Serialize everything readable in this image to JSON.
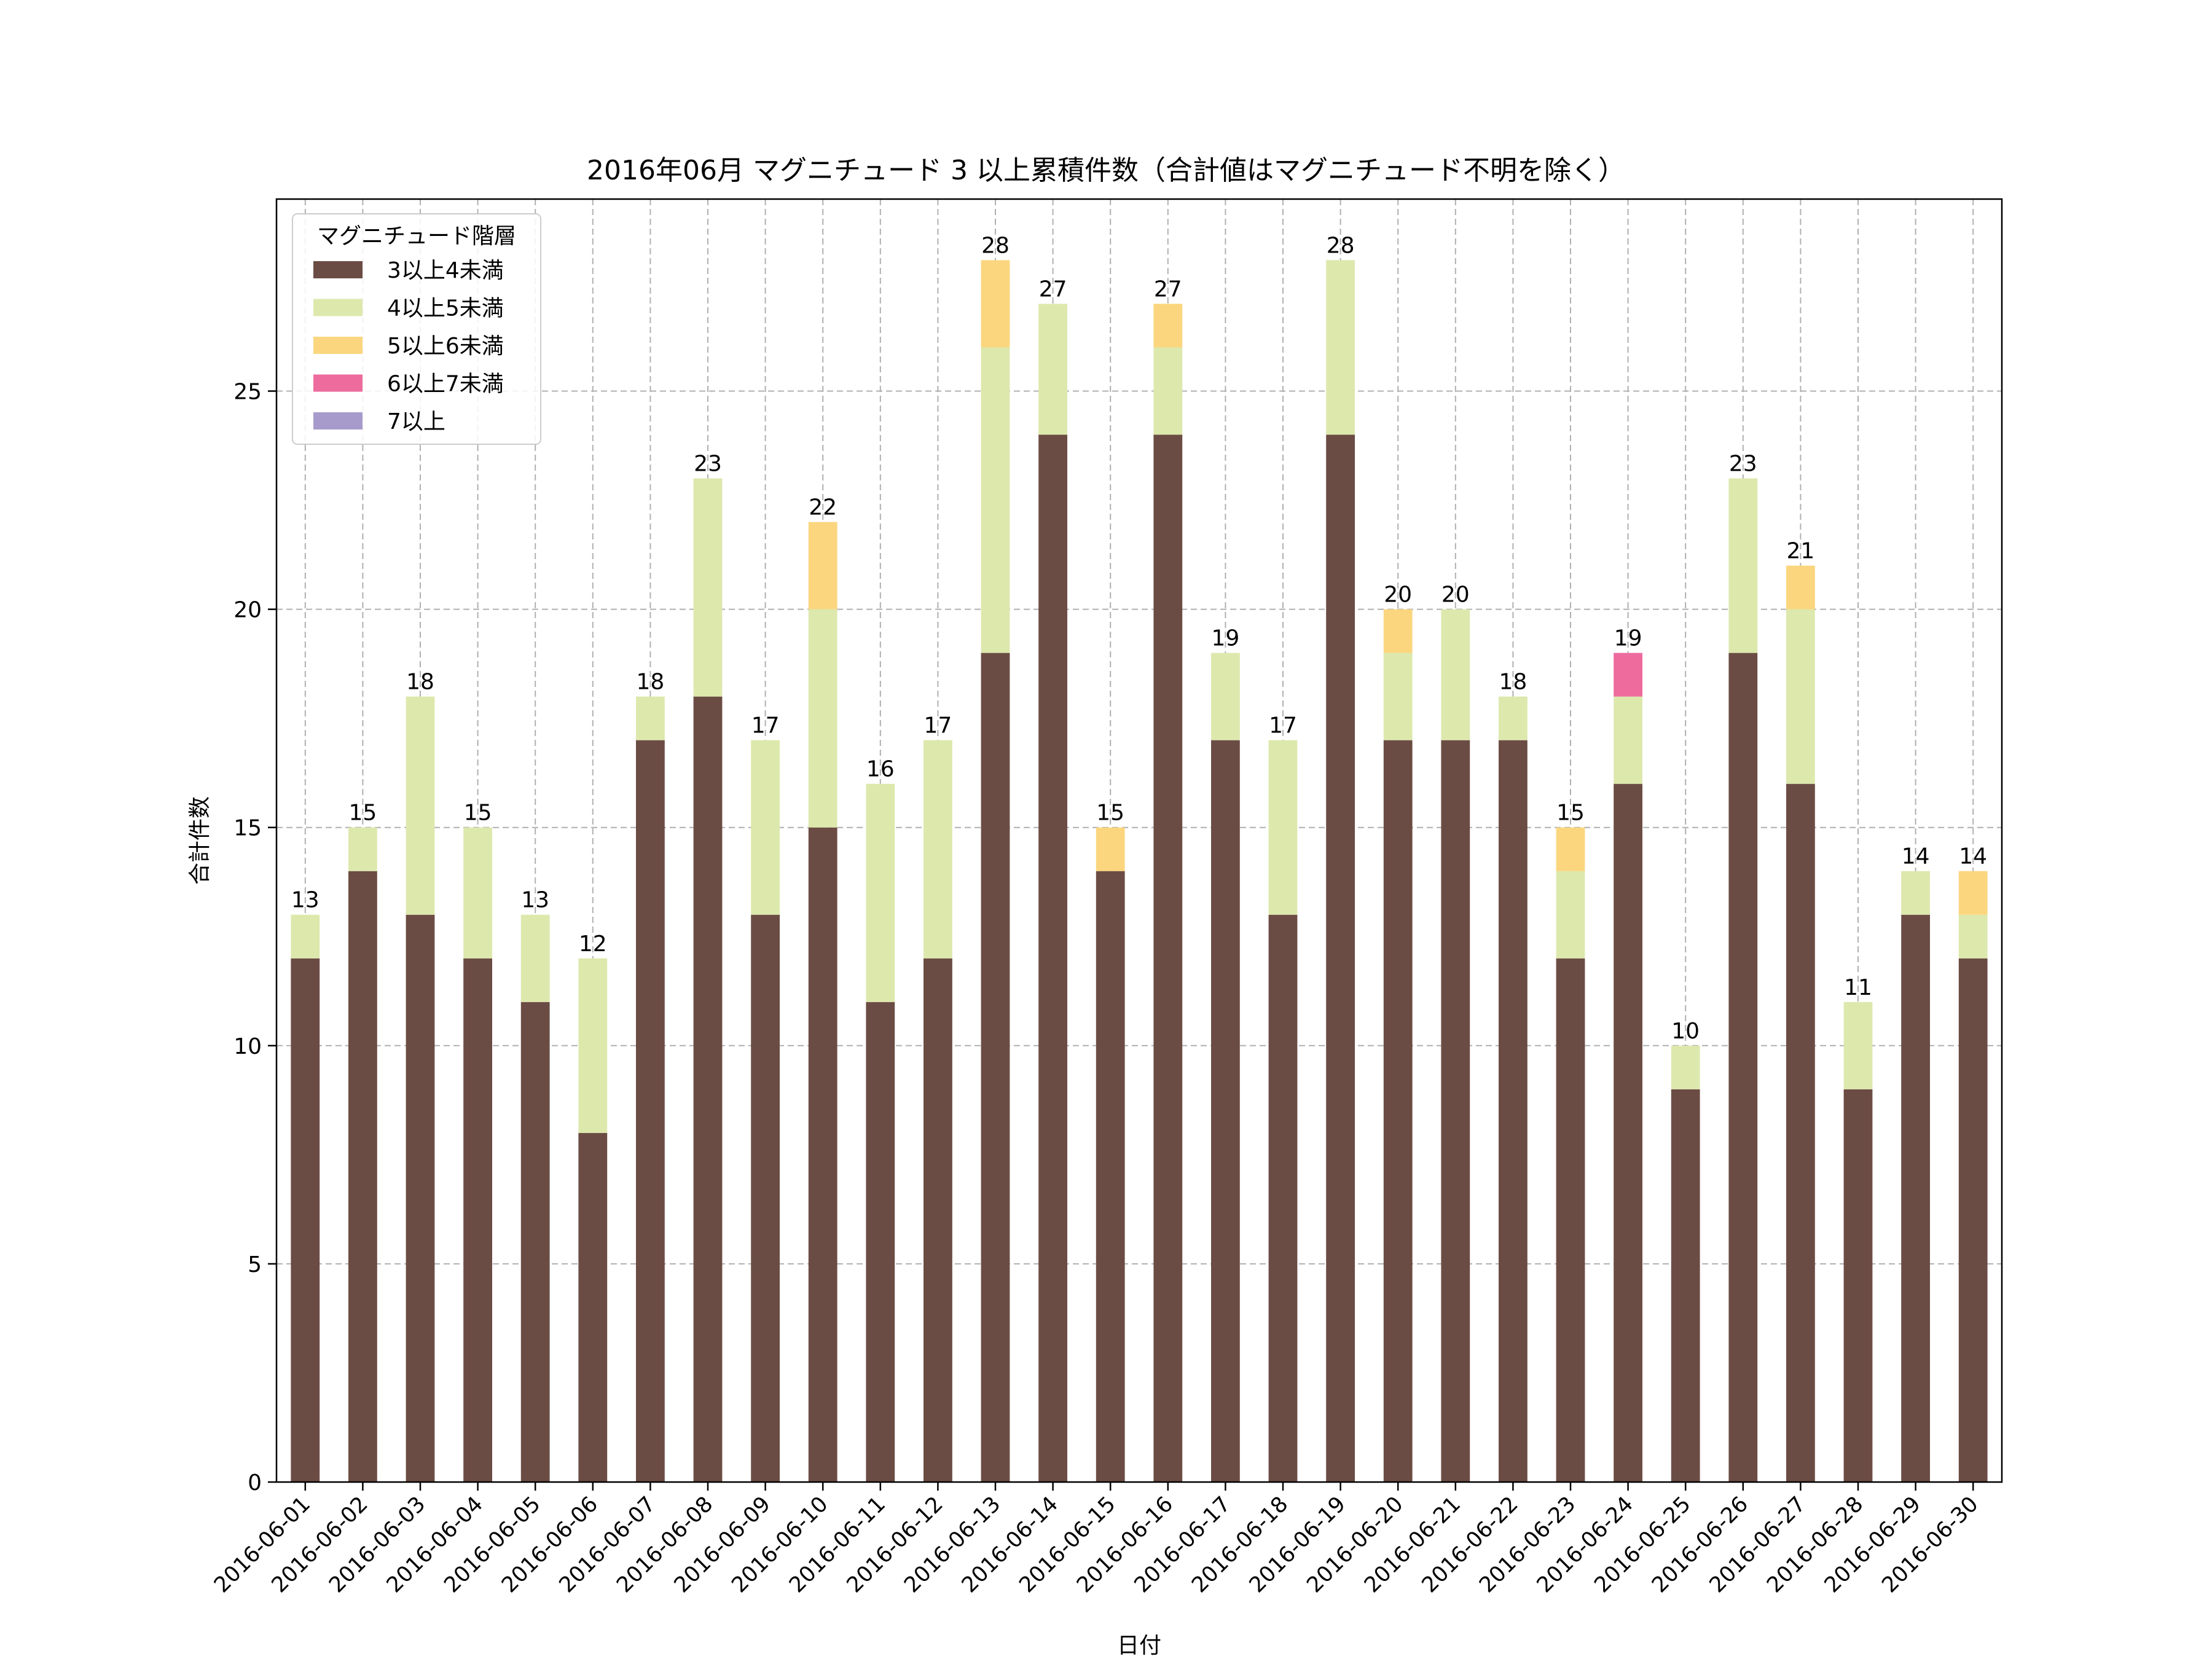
{
  "chart_data": {
    "type": "bar",
    "stacked": true,
    "title": "2016年06月 マグニチュード 3 以上累積件数（合計値はマグニチュード不明を除く）",
    "xlabel": "日付",
    "ylabel": "合計件数",
    "ylim": [
      0,
      29.4
    ],
    "yticks": [
      0,
      5,
      10,
      15,
      20,
      25
    ],
    "grid": true,
    "legend": {
      "title": "マグニチュード階層",
      "placement": "top-left"
    },
    "categories": [
      "2016-06-01",
      "2016-06-02",
      "2016-06-03",
      "2016-06-04",
      "2016-06-05",
      "2016-06-06",
      "2016-06-07",
      "2016-06-08",
      "2016-06-09",
      "2016-06-10",
      "2016-06-11",
      "2016-06-12",
      "2016-06-13",
      "2016-06-14",
      "2016-06-15",
      "2016-06-16",
      "2016-06-17",
      "2016-06-18",
      "2016-06-19",
      "2016-06-20",
      "2016-06-21",
      "2016-06-22",
      "2016-06-23",
      "2016-06-24",
      "2016-06-25",
      "2016-06-26",
      "2016-06-27",
      "2016-06-28",
      "2016-06-29",
      "2016-06-30"
    ],
    "series": [
      {
        "name": "3以上4未満",
        "color": "#6b4c44",
        "values": [
          12,
          14,
          13,
          12,
          11,
          8,
          17,
          18,
          13,
          15,
          11,
          12,
          19,
          24,
          14,
          24,
          17,
          13,
          24,
          17,
          17,
          17,
          12,
          16,
          9,
          19,
          16,
          9,
          13,
          12
        ]
      },
      {
        "name": "4以上5未満",
        "color": "#dde8ad",
        "values": [
          1,
          1,
          5,
          3,
          2,
          4,
          1,
          5,
          4,
          5,
          5,
          5,
          7,
          3,
          0,
          2,
          2,
          4,
          4,
          2,
          3,
          1,
          2,
          2,
          1,
          4,
          4,
          2,
          1,
          1
        ]
      },
      {
        "name": "5以上6未満",
        "color": "#fbd67e",
        "values": [
          0,
          0,
          0,
          0,
          0,
          0,
          0,
          0,
          0,
          2,
          0,
          0,
          2,
          0,
          1,
          1,
          0,
          0,
          0,
          1,
          0,
          0,
          1,
          0,
          0,
          0,
          1,
          0,
          0,
          1
        ]
      },
      {
        "name": "6以上7未満",
        "color": "#ee6b9e",
        "values": [
          0,
          0,
          0,
          0,
          0,
          0,
          0,
          0,
          0,
          0,
          0,
          0,
          0,
          0,
          0,
          0,
          0,
          0,
          0,
          0,
          0,
          0,
          0,
          1,
          0,
          0,
          0,
          0,
          0,
          0
        ]
      },
      {
        "name": "7以上",
        "color": "#a79bcc",
        "values": [
          0,
          0,
          0,
          0,
          0,
          0,
          0,
          0,
          0,
          0,
          0,
          0,
          0,
          0,
          0,
          0,
          0,
          0,
          0,
          0,
          0,
          0,
          0,
          0,
          0,
          0,
          0,
          0,
          0,
          0
        ]
      }
    ],
    "totals": [
      13,
      15,
      18,
      15,
      13,
      12,
      18,
      23,
      17,
      22,
      16,
      17,
      28,
      27,
      15,
      27,
      19,
      17,
      28,
      20,
      20,
      18,
      15,
      19,
      10,
      23,
      21,
      11,
      14,
      14
    ]
  }
}
